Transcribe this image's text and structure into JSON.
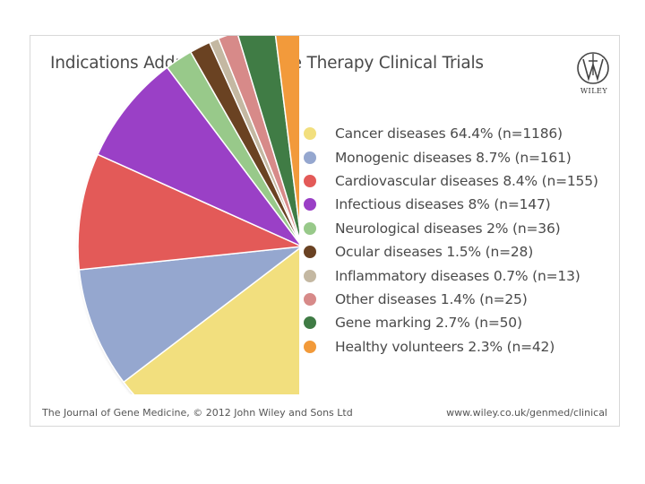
{
  "chart_data": {
    "type": "pie",
    "title": "Indications Addressed by Gene Therapy Clinical Trials",
    "slices": [
      {
        "label": "Cancer diseases 64.4% (n=1186)",
        "value": 64.4,
        "n": 1186,
        "color": "#f2df7e"
      },
      {
        "label": "Monogenic diseases 8.7% (n=161)",
        "value": 8.7,
        "n": 161,
        "color": "#95a7cf"
      },
      {
        "label": "Cardiovascular diseases 8.4% (n=155)",
        "value": 8.4,
        "n": 155,
        "color": "#e35a58"
      },
      {
        "label": "Infectious diseases 8% (n=147)",
        "value": 8,
        "n": 147,
        "color": "#9a3fc6"
      },
      {
        "label": "Neurological diseases 2% (n=36)",
        "value": 2,
        "n": 36,
        "color": "#98c98a"
      },
      {
        "label": "Ocular diseases 1.5% (n=28)",
        "value": 1.5,
        "n": 28,
        "color": "#6a4223"
      },
      {
        "label": "Inflammatory diseases 0.7% (n=13)",
        "value": 0.7,
        "n": 13,
        "color": "#c4b8a2"
      },
      {
        "label": "Other diseases 1.4% (n=25)",
        "value": 1.4,
        "n": 25,
        "color": "#d78a89"
      },
      {
        "label": "Gene marking 2.7% (n=50)",
        "value": 2.7,
        "n": 50,
        "color": "#3f7b45"
      },
      {
        "label": "Healthy volunteers 2.3% (n=42)",
        "value": 2.3,
        "n": 42,
        "color": "#f29a3a"
      }
    ],
    "legend_position": "right"
  },
  "publisher": "WILEY",
  "footer": {
    "source": "The Journal of Gene Medicine, © 2012 John Wiley and Sons Ltd",
    "url": "www.wiley.co.uk/genmed/clinical"
  }
}
